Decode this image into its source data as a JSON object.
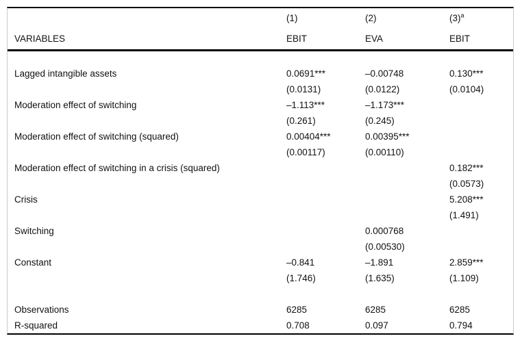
{
  "colors": {
    "rule": "#000000",
    "side_border": "#c9c9c9",
    "text": "#111111",
    "background": "#ffffff"
  },
  "table": {
    "header": {
      "variables_label": "VARIABLES",
      "columns": [
        {
          "number": "(1)",
          "superscript": "",
          "dep_var": "EBIT"
        },
        {
          "number": "(2)",
          "superscript": "",
          "dep_var": "EVA"
        },
        {
          "number": "(3)",
          "superscript": "a",
          "dep_var": "EBIT"
        }
      ]
    },
    "rows": [
      {
        "label": "Lagged intangible assets",
        "c1": "0.0691***",
        "c2": "–0.00748",
        "c3": "0.130***"
      },
      {
        "label": "",
        "c1": "(0.0131)",
        "c2": "(0.0122)",
        "c3": "(0.0104)"
      },
      {
        "label": "Moderation effect of switching",
        "c1": "–1.113***",
        "c2": "–1.173***",
        "c3": ""
      },
      {
        "label": "",
        "c1": "(0.261)",
        "c2": "(0.245)",
        "c3": ""
      },
      {
        "label": "Moderation effect of switching (squared)",
        "c1": "0.00404***",
        "c2": "0.00395***",
        "c3": ""
      },
      {
        "label": "",
        "c1": "(0.00117)",
        "c2": "(0.00110)",
        "c3": ""
      },
      {
        "label": "Moderation effect of switching in a crisis (squared)",
        "c1": "",
        "c2": "",
        "c3": "0.182***"
      },
      {
        "label": "",
        "c1": "",
        "c2": "",
        "c3": "(0.0573)"
      },
      {
        "label": "Crisis",
        "c1": "",
        "c2": "",
        "c3": "5.208***"
      },
      {
        "label": "",
        "c1": "",
        "c2": "",
        "c3": "(1.491)"
      },
      {
        "label": "Switching",
        "c1": "",
        "c2": "0.000768",
        "c3": ""
      },
      {
        "label": "",
        "c1": "",
        "c2": "(0.00530)",
        "c3": ""
      },
      {
        "label": "Constant",
        "c1": "–0.841",
        "c2": "–1.891",
        "c3": "2.859***"
      },
      {
        "label": "",
        "c1": "(1.746)",
        "c2": "(1.635)",
        "c3": "(1.109)"
      }
    ],
    "stats": [
      {
        "label": "Observations",
        "c1": "6285",
        "c2": "6285",
        "c3": "6285"
      },
      {
        "label": "R-squared",
        "c1": "0.708",
        "c2": "0.097",
        "c3": "0.794"
      }
    ]
  }
}
